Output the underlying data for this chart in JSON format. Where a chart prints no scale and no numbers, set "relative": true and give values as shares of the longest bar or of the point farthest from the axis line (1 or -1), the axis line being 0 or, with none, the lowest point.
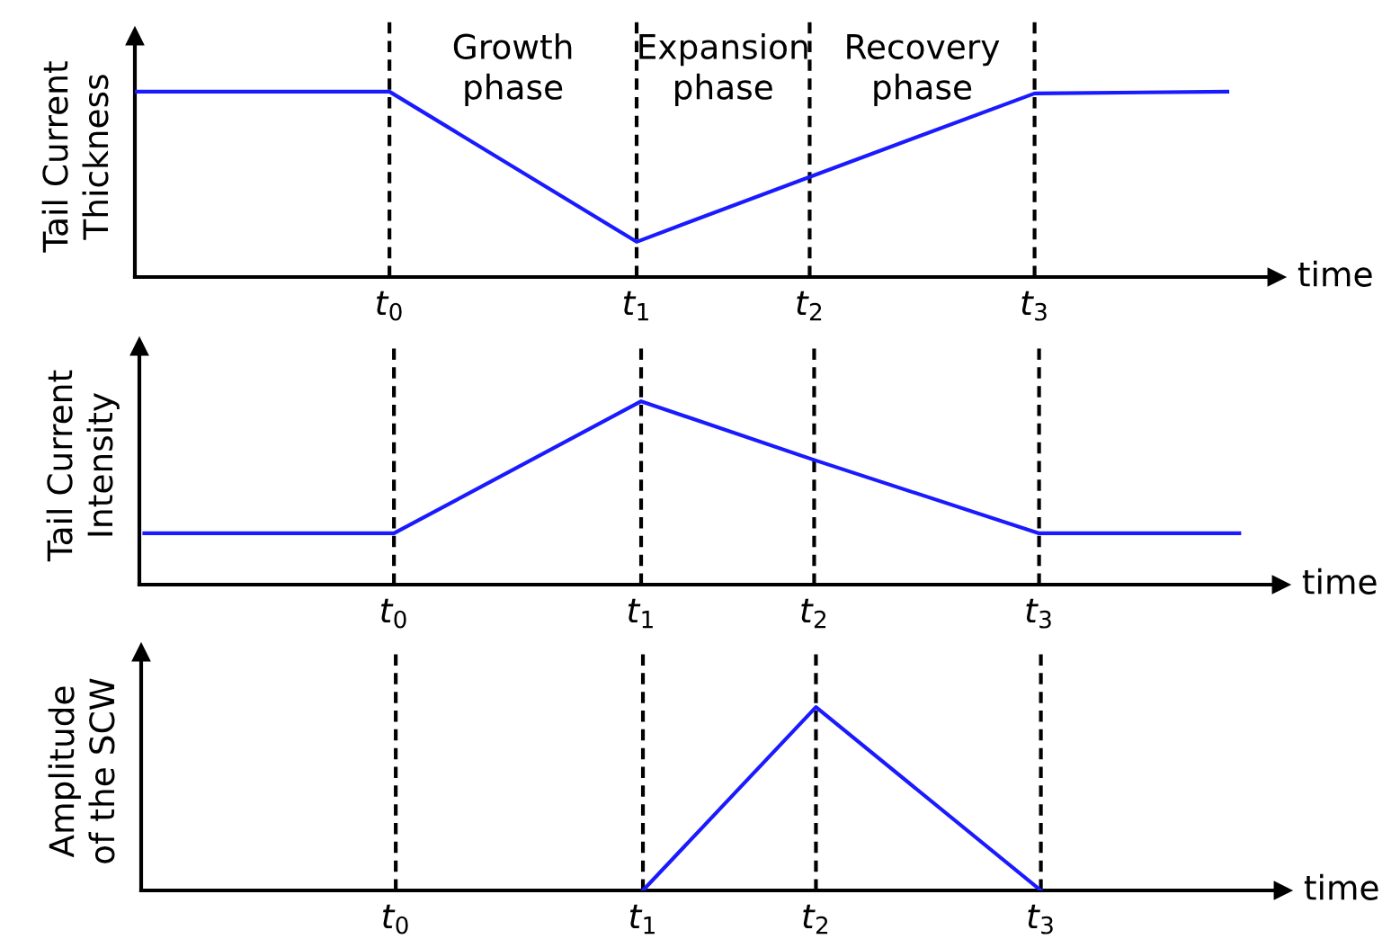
{
  "chart_data": [
    {
      "type": "line",
      "ylabel": "Tail Current\nThickness",
      "xlabel": "time",
      "relative": true,
      "grid": false,
      "legend": false,
      "marker": "none",
      "line_style": "solid",
      "xlim": [
        -1.03,
        3.59
      ],
      "xticks": [
        {
          "value": 0,
          "label": "t$_{0}$"
        },
        {
          "value": 1,
          "label": "t$_{1}$"
        },
        {
          "value": 1.7,
          "label": "t$_{2}$"
        },
        {
          "value": 2.61,
          "label": "t$_{3}$"
        }
      ],
      "ref_lines": [
        {
          "axis": "x",
          "value": 0,
          "color": "#000000",
          "line_style": "dashed"
        },
        {
          "axis": "x",
          "value": 1,
          "color": "#000000",
          "line_style": "dashed"
        },
        {
          "axis": "x",
          "value": 1.7,
          "color": "#000000",
          "line_style": "dashed"
        },
        {
          "axis": "x",
          "value": 2.61,
          "color": "#000000",
          "line_style": "dashed"
        }
      ],
      "annotations": [
        "Growth\nphase",
        "Expansion\nphase",
        "Recovery\nphase"
      ],
      "series": [
        {
          "color": "#1a1aff",
          "x": [
            -1.03,
            0,
            1,
            1.7,
            2.61,
            3.39
          ],
          "values": [
            1,
            1,
            0.19,
            0.54,
            0.99,
            1
          ]
        }
      ]
    },
    {
      "type": "line",
      "ylabel": "Tail Current\nIntensity",
      "xlabel": "time",
      "relative": true,
      "grid": false,
      "legend": false,
      "marker": "none",
      "line_style": "solid",
      "xlim": [
        -1.03,
        3.59
      ],
      "xticks": [
        {
          "value": 0,
          "label": "t$_{0}$"
        },
        {
          "value": 1,
          "label": "t$_{1}$"
        },
        {
          "value": 1.7,
          "label": "t$_{2}$"
        },
        {
          "value": 2.61,
          "label": "t$_{3}$"
        }
      ],
      "ref_lines": [
        {
          "axis": "x",
          "value": 0,
          "color": "#000000",
          "line_style": "dashed"
        },
        {
          "axis": "x",
          "value": 1,
          "color": "#000000",
          "line_style": "dashed"
        },
        {
          "axis": "x",
          "value": 1.7,
          "color": "#000000",
          "line_style": "dashed"
        },
        {
          "axis": "x",
          "value": 2.61,
          "color": "#000000",
          "line_style": "dashed"
        }
      ],
      "series": [
        {
          "color": "#1a1aff",
          "x": [
            -1.01,
            0,
            1,
            1.7,
            2.61,
            3.42
          ],
          "values": [
            0.28,
            0.28,
            1,
            0.68,
            0.28,
            0.28
          ]
        }
      ]
    },
    {
      "type": "line",
      "ylabel": "Amplitude\nof the SCW",
      "xlabel": "time",
      "relative": true,
      "grid": false,
      "legend": false,
      "marker": "none",
      "line_style": "solid",
      "xlim": [
        -1.03,
        3.59
      ],
      "xticks": [
        {
          "value": 0,
          "label": "t$_{0}$"
        },
        {
          "value": 1,
          "label": "t$_{1}$"
        },
        {
          "value": 1.7,
          "label": "t$_{2}$"
        },
        {
          "value": 2.61,
          "label": "t$_{3}$"
        }
      ],
      "ref_lines": [
        {
          "axis": "x",
          "value": 0,
          "color": "#000000",
          "line_style": "dashed"
        },
        {
          "axis": "x",
          "value": 1,
          "color": "#000000",
          "line_style": "dashed"
        },
        {
          "axis": "x",
          "value": 1.7,
          "color": "#000000",
          "line_style": "dashed"
        },
        {
          "axis": "x",
          "value": 2.61,
          "color": "#000000",
          "line_style": "dashed"
        }
      ],
      "series": [
        {
          "color": "#1a1aff",
          "x": [
            1,
            1.7,
            2.61
          ],
          "values": [
            0,
            1,
            0
          ]
        }
      ]
    }
  ]
}
